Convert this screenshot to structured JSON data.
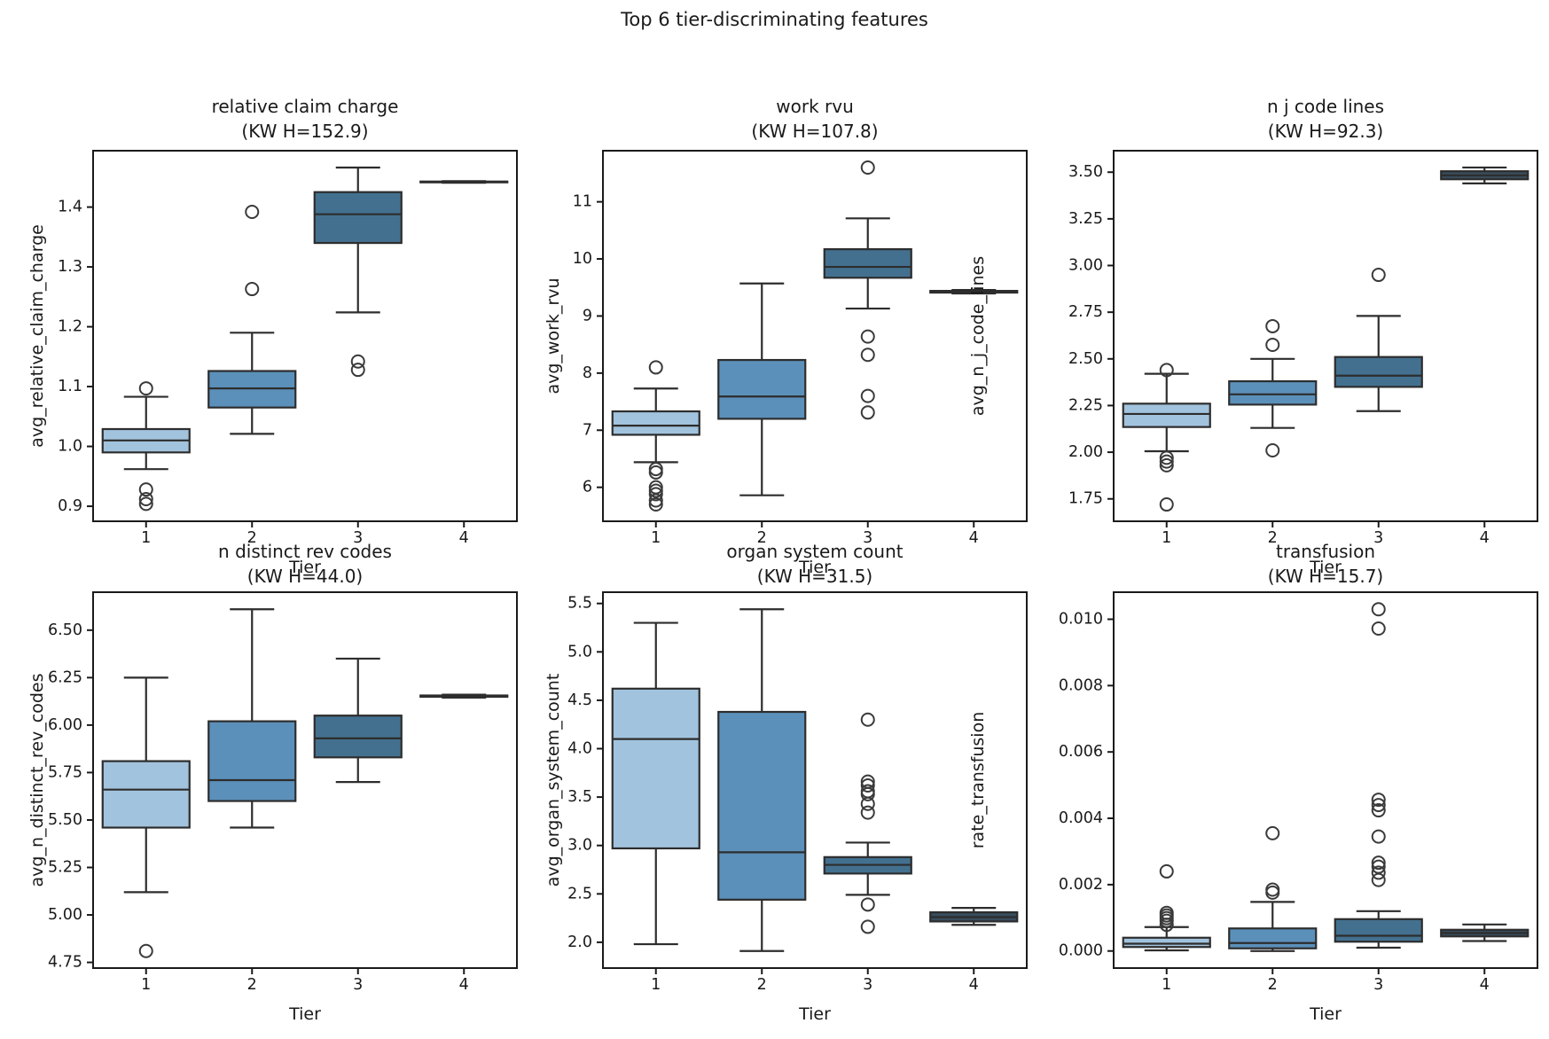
{
  "figure": {
    "title": "Top 6 tier-discriminating features"
  },
  "style": {
    "palette": [
      "#a2c3dd",
      "#5b90ba",
      "#43708f",
      "#384c5c"
    ],
    "box_line_color": "#2d2d2d",
    "outlier_color": "#3a3a3a",
    "spine_color": "#1a1a1a",
    "text_color": "#1a1a1a",
    "background": "#ffffff"
  },
  "chart_data": [
    {
      "type": "box",
      "id": "relative-claim-charge",
      "title": "relative claim charge",
      "subtitle": "(KW H=152.9)",
      "kw_h": 152.9,
      "ylabel": "avg_relative_claim_charge",
      "xlabel": "Tier",
      "categories": [
        "1",
        "2",
        "3",
        "4"
      ],
      "ylim": [
        0.8749,
        1.4942
      ],
      "yticks": [
        0.9,
        1.0,
        1.1,
        1.2,
        1.3,
        1.4
      ],
      "ytick_labels": [
        "0.9",
        "1.0",
        "1.1",
        "1.2",
        "1.3",
        "1.4"
      ],
      "boxes": [
        {
          "tier": "1",
          "whislo": 0.962,
          "q1": 0.99,
          "med": 1.01,
          "q3": 1.029,
          "whishi": 1.083,
          "fliers": [
            1.097,
            0.928,
            0.912,
            0.904
          ]
        },
        {
          "tier": "2",
          "whislo": 1.021,
          "q1": 1.065,
          "med": 1.097,
          "q3": 1.126,
          "whishi": 1.19,
          "fliers": [
            1.392,
            1.263
          ]
        },
        {
          "tier": "3",
          "whislo": 1.224,
          "q1": 1.34,
          "med": 1.388,
          "q3": 1.425,
          "whishi": 1.466,
          "fliers": [
            1.142,
            1.128
          ]
        },
        {
          "tier": "4",
          "whislo": 1.4407,
          "q1": 1.4413,
          "med": 1.442,
          "q3": 1.4427,
          "whishi": 1.4433,
          "fliers": []
        }
      ]
    },
    {
      "type": "box",
      "id": "work-rvu",
      "title": "work rvu",
      "subtitle": "(KW H=107.8)",
      "kw_h": 107.8,
      "ylabel": "avg_work_rvu",
      "xlabel": "Tier",
      "categories": [
        "1",
        "2",
        "3",
        "4"
      ],
      "ylim": [
        5.405,
        11.895
      ],
      "yticks": [
        6,
        7,
        8,
        9,
        10,
        11
      ],
      "ytick_labels": [
        "6",
        "7",
        "8",
        "9",
        "10",
        "11"
      ],
      "boxes": [
        {
          "tier": "1",
          "whislo": 6.44,
          "q1": 6.92,
          "med": 7.08,
          "q3": 7.33,
          "whishi": 7.73,
          "fliers": [
            8.1,
            6.32,
            6.26,
            6.0,
            5.94,
            5.88,
            5.77,
            5.7
          ]
        },
        {
          "tier": "2",
          "whislo": 5.86,
          "q1": 7.2,
          "med": 7.59,
          "q3": 8.23,
          "whishi": 9.57,
          "fliers": []
        },
        {
          "tier": "3",
          "whislo": 9.13,
          "q1": 9.67,
          "med": 9.86,
          "q3": 10.17,
          "whishi": 10.71,
          "fliers": [
            11.6,
            8.64,
            8.32,
            7.6,
            7.31
          ]
        },
        {
          "tier": "4",
          "whislo": 9.395,
          "q1": 9.41,
          "med": 9.425,
          "q3": 9.44,
          "whishi": 9.455,
          "fliers": []
        }
      ]
    },
    {
      "type": "box",
      "id": "n-j-code-lines",
      "title": "n j code lines",
      "subtitle": "(KW H=92.3)",
      "kw_h": 92.3,
      "ylabel": "avg_n_j_code_lines",
      "xlabel": "Tier",
      "categories": [
        "1",
        "2",
        "3",
        "4"
      ],
      "ylim": [
        1.63,
        3.615
      ],
      "yticks": [
        1.75,
        2.0,
        2.25,
        2.5,
        2.75,
        3.0,
        3.25,
        3.5
      ],
      "ytick_labels": [
        "1.75",
        "2.00",
        "2.25",
        "2.50",
        "2.75",
        "3.00",
        "3.25",
        "3.50"
      ],
      "boxes": [
        {
          "tier": "1",
          "whislo": 2.005,
          "q1": 2.135,
          "med": 2.205,
          "q3": 2.26,
          "whishi": 2.42,
          "fliers": [
            2.44,
            1.97,
            1.95,
            1.93,
            1.72
          ]
        },
        {
          "tier": "2",
          "whislo": 2.13,
          "q1": 2.255,
          "med": 2.31,
          "q3": 2.38,
          "whishi": 2.5,
          "fliers": [
            2.675,
            2.575,
            2.01
          ]
        },
        {
          "tier": "3",
          "whislo": 2.22,
          "q1": 2.35,
          "med": 2.41,
          "q3": 2.51,
          "whishi": 2.73,
          "fliers": [
            2.95
          ]
        },
        {
          "tier": "4",
          "whislo": 3.44,
          "q1": 3.462,
          "med": 3.483,
          "q3": 3.505,
          "whishi": 3.525,
          "fliers": []
        }
      ]
    },
    {
      "type": "box",
      "id": "n-distinct-rev-codes",
      "title": "n distinct rev codes",
      "subtitle": "(KW H=44.0)",
      "kw_h": 44.0,
      "ylabel": "avg_n_distinct_rev_codes",
      "xlabel": "Tier",
      "categories": [
        "1",
        "2",
        "3",
        "4"
      ],
      "ylim": [
        4.72,
        6.7
      ],
      "yticks": [
        4.75,
        5.0,
        5.25,
        5.5,
        5.75,
        6.0,
        6.25,
        6.5
      ],
      "ytick_labels": [
        "4.75",
        "5.00",
        "5.25",
        "5.50",
        "5.75",
        "6.00",
        "6.25",
        "6.50"
      ],
      "boxes": [
        {
          "tier": "1",
          "whislo": 5.12,
          "q1": 5.46,
          "med": 5.66,
          "q3": 5.81,
          "whishi": 6.25,
          "fliers": [
            4.81
          ]
        },
        {
          "tier": "2",
          "whislo": 5.46,
          "q1": 5.6,
          "med": 5.71,
          "q3": 6.02,
          "whishi": 6.61,
          "fliers": []
        },
        {
          "tier": "3",
          "whislo": 5.7,
          "q1": 5.83,
          "med": 5.93,
          "q3": 6.05,
          "whishi": 6.35,
          "fliers": []
        },
        {
          "tier": "4",
          "whislo": 6.145,
          "q1": 6.149,
          "med": 6.152,
          "q3": 6.156,
          "whishi": 6.16,
          "fliers": []
        }
      ]
    },
    {
      "type": "box",
      "id": "organ-system-count",
      "title": "organ system count",
      "subtitle": "(KW H=31.5)",
      "kw_h": 31.5,
      "ylabel": "avg_organ_system_count",
      "xlabel": "Tier",
      "categories": [
        "1",
        "2",
        "3",
        "4"
      ],
      "ylim": [
        1.7335,
        5.6165
      ],
      "yticks": [
        2.0,
        2.5,
        3.0,
        3.5,
        4.0,
        4.5,
        5.0,
        5.5
      ],
      "ytick_labels": [
        "2.0",
        "2.5",
        "3.0",
        "3.5",
        "4.0",
        "4.5",
        "5.0",
        "5.5"
      ],
      "boxes": [
        {
          "tier": "1",
          "whislo": 1.98,
          "q1": 2.97,
          "med": 4.1,
          "q3": 4.62,
          "whishi": 5.3,
          "fliers": []
        },
        {
          "tier": "2",
          "whislo": 1.91,
          "q1": 2.44,
          "med": 2.93,
          "q3": 4.38,
          "whishi": 5.44,
          "fliers": []
        },
        {
          "tier": "3",
          "whislo": 2.49,
          "q1": 2.71,
          "med": 2.8,
          "q3": 2.88,
          "whishi": 3.03,
          "fliers": [
            4.3,
            3.66,
            3.62,
            3.56,
            3.53,
            3.43,
            3.34,
            2.39,
            2.16
          ]
        },
        {
          "tier": "4",
          "whislo": 2.18,
          "q1": 2.215,
          "med": 2.26,
          "q3": 2.31,
          "whishi": 2.355,
          "fliers": []
        }
      ]
    },
    {
      "type": "box",
      "id": "transfusion",
      "title": "transfusion",
      "subtitle": "(KW H=15.7)",
      "kw_h": 15.7,
      "ylabel": "rate_transfusion",
      "xlabel": "Tier",
      "categories": [
        "1",
        "2",
        "3",
        "4"
      ],
      "ylim": [
        -0.000515,
        0.010815
      ],
      "yticks": [
        0.0,
        0.002,
        0.004,
        0.006,
        0.008,
        0.01
      ],
      "ytick_labels": [
        "0.000",
        "0.002",
        "0.004",
        "0.006",
        "0.008",
        "0.010"
      ],
      "boxes": [
        {
          "tier": "1",
          "whislo": 2e-05,
          "q1": 0.00012,
          "med": 0.00022,
          "q3": 0.0004,
          "whishi": 0.00072,
          "fliers": [
            0.0024,
            0.00115,
            0.00107,
            0.00099,
            0.00091,
            0.00079
          ]
        },
        {
          "tier": "2",
          "whislo": 0.0,
          "q1": 8e-05,
          "med": 0.00024,
          "q3": 0.00068,
          "whishi": 0.00148,
          "fliers": [
            0.00355,
            0.00185,
            0.00176
          ]
        },
        {
          "tier": "3",
          "whislo": 0.0001,
          "q1": 0.00028,
          "med": 0.00046,
          "q3": 0.00096,
          "whishi": 0.0012,
          "fliers": [
            0.0103,
            0.00972,
            0.00456,
            0.0044,
            0.00424,
            0.00345,
            0.00266,
            0.00254,
            0.00236,
            0.00214
          ]
        },
        {
          "tier": "4",
          "whislo": 0.0003,
          "q1": 0.00044,
          "med": 0.00054,
          "q3": 0.00064,
          "whishi": 0.0008,
          "fliers": []
        }
      ]
    }
  ]
}
